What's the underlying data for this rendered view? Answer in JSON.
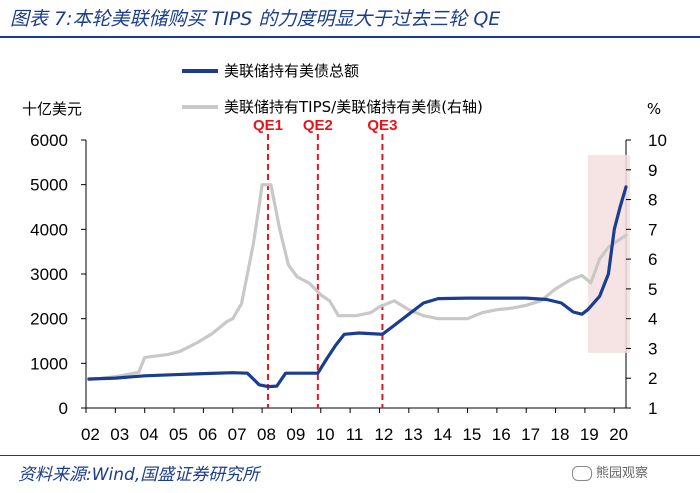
{
  "page": {
    "title": "图表 7:本轮美联储购买 TIPS 的力度明显大于过去三轮 QE",
    "source": "资料来源:Wind,国盛证券研究所",
    "watermark": "熊园观察"
  },
  "chart_data": {
    "type": "line",
    "left_axis_unit": "十亿美元",
    "right_axis_unit": "%",
    "ylim": [
      0,
      6000
    ],
    "yticks": [
      0,
      1000,
      2000,
      3000,
      4000,
      5000,
      6000
    ],
    "y2lim": [
      1,
      10
    ],
    "y2ticks": [
      1,
      2,
      3,
      4,
      5,
      6,
      7,
      8,
      9,
      10
    ],
    "xlim": [
      2002,
      2020.4
    ],
    "xticks": [
      "02",
      "03",
      "04",
      "05",
      "06",
      "07",
      "08",
      "09",
      "10",
      "11",
      "12",
      "13",
      "14",
      "15",
      "16",
      "17",
      "18",
      "19",
      "20"
    ],
    "legend_placement": "top-center",
    "shaded_region": [
      2019.1,
      2020.4
    ],
    "annotations": [
      {
        "label": "QE1",
        "x": 2008.2
      },
      {
        "label": "QE2",
        "x": 2009.9
      },
      {
        "label": "QE3",
        "x": 2012.1
      }
    ],
    "series": [
      {
        "name": "美联储持有美债总额",
        "axis": "left",
        "color": "#1a3d8f",
        "points": [
          [
            2002.1,
            650
          ],
          [
            2003.0,
            670
          ],
          [
            2004.0,
            720
          ],
          [
            2005.0,
            745
          ],
          [
            2006.0,
            770
          ],
          [
            2007.0,
            790
          ],
          [
            2007.5,
            780
          ],
          [
            2007.7,
            650
          ],
          [
            2007.9,
            520
          ],
          [
            2008.2,
            480
          ],
          [
            2008.5,
            490
          ],
          [
            2008.8,
            780
          ],
          [
            2009.9,
            780
          ],
          [
            2010.2,
            1100
          ],
          [
            2010.5,
            1400
          ],
          [
            2010.8,
            1650
          ],
          [
            2011.3,
            1680
          ],
          [
            2012.1,
            1650
          ],
          [
            2012.5,
            1850
          ],
          [
            2013.0,
            2100
          ],
          [
            2013.5,
            2350
          ],
          [
            2014.0,
            2450
          ],
          [
            2015.0,
            2460
          ],
          [
            2016.0,
            2460
          ],
          [
            2017.0,
            2460
          ],
          [
            2017.7,
            2430
          ],
          [
            2018.2,
            2350
          ],
          [
            2018.6,
            2150
          ],
          [
            2018.9,
            2100
          ],
          [
            2019.1,
            2200
          ],
          [
            2019.5,
            2500
          ],
          [
            2019.8,
            3000
          ],
          [
            2020.0,
            4000
          ],
          [
            2020.2,
            4500
          ],
          [
            2020.4,
            4950
          ]
        ]
      },
      {
        "name": "美联储持有TIPS/美联储持有美债(右轴)",
        "axis": "right",
        "color": "#c8c8c8",
        "points": [
          [
            2002.1,
            1.95
          ],
          [
            2003.0,
            2.05
          ],
          [
            2003.8,
            2.2
          ],
          [
            2004.0,
            2.7
          ],
          [
            2004.8,
            2.8
          ],
          [
            2005.2,
            2.9
          ],
          [
            2005.8,
            3.2
          ],
          [
            2006.3,
            3.5
          ],
          [
            2006.8,
            3.9
          ],
          [
            2007.0,
            4.0
          ],
          [
            2007.3,
            4.5
          ],
          [
            2007.5,
            5.5
          ],
          [
            2007.7,
            6.5
          ],
          [
            2007.9,
            7.8
          ],
          [
            2008.0,
            8.5
          ],
          [
            2008.3,
            8.5
          ],
          [
            2008.6,
            7.0
          ],
          [
            2008.9,
            5.8
          ],
          [
            2009.2,
            5.4
          ],
          [
            2009.6,
            5.2
          ],
          [
            2010.0,
            4.8
          ],
          [
            2010.3,
            4.6
          ],
          [
            2010.6,
            4.1
          ],
          [
            2011.2,
            4.1
          ],
          [
            2011.7,
            4.2
          ],
          [
            2012.0,
            4.4
          ],
          [
            2012.5,
            4.6
          ],
          [
            2013.0,
            4.3
          ],
          [
            2013.5,
            4.1
          ],
          [
            2014.0,
            4.0
          ],
          [
            2015.0,
            4.0
          ],
          [
            2015.5,
            4.2
          ],
          [
            2016.0,
            4.3
          ],
          [
            2016.5,
            4.35
          ],
          [
            2017.0,
            4.45
          ],
          [
            2017.5,
            4.6
          ],
          [
            2018.0,
            5.0
          ],
          [
            2018.5,
            5.3
          ],
          [
            2018.9,
            5.45
          ],
          [
            2019.2,
            5.2
          ],
          [
            2019.5,
            6.0
          ],
          [
            2019.8,
            6.4
          ],
          [
            2020.1,
            6.6
          ],
          [
            2020.4,
            6.8
          ]
        ]
      }
    ]
  }
}
